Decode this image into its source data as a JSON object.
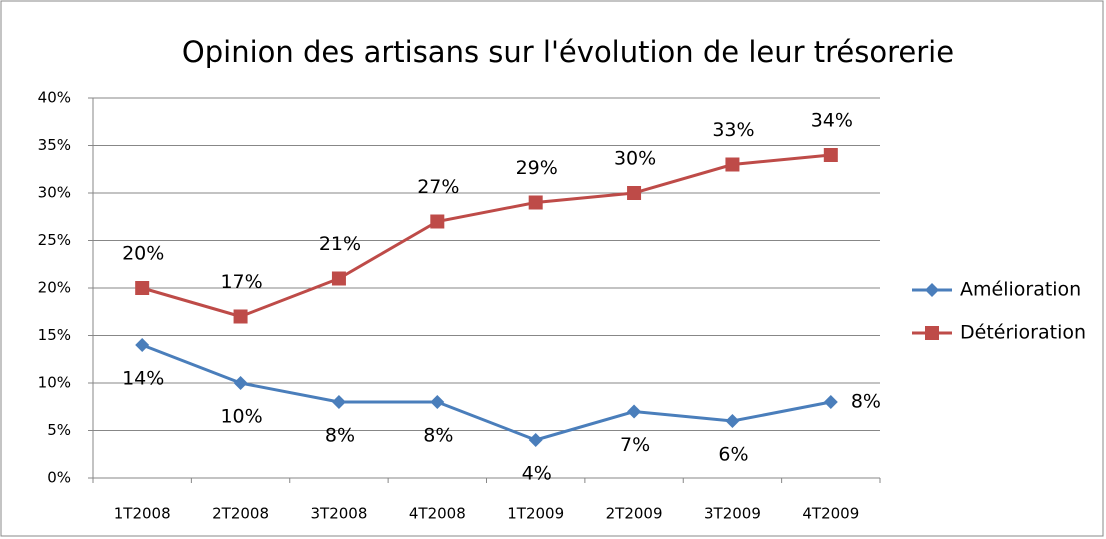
{
  "chart_data": {
    "type": "line",
    "title": "Opinion des artisans sur l'évolution de leur trésorerie",
    "categories": [
      "1T2008",
      "2T2008",
      "3T2008",
      "4T2008",
      "1T2009",
      "2T2009",
      "3T2009",
      "4T2009"
    ],
    "series": [
      {
        "name": "Amélioration",
        "color": "#4a7ebb",
        "marker": "diamond",
        "values": [
          14,
          10,
          8,
          8,
          4,
          7,
          6,
          8
        ],
        "value_labels": [
          "14%",
          "10%",
          "8%",
          "8%",
          "4%",
          "7%",
          "6%",
          "8%"
        ]
      },
      {
        "name": "Détérioration",
        "color": "#be4b48",
        "marker": "square",
        "values": [
          20,
          17,
          21,
          27,
          29,
          30,
          33,
          34
        ],
        "value_labels": [
          "20%",
          "17%",
          "21%",
          "27%",
          "29%",
          "30%",
          "33%",
          "34%"
        ]
      }
    ],
    "ylim": [
      0,
      40
    ],
    "yticks": [
      {
        "value": 0,
        "label": "0%"
      },
      {
        "value": 5,
        "label": "5%"
      },
      {
        "value": 10,
        "label": "10%"
      },
      {
        "value": 15,
        "label": "15%"
      },
      {
        "value": 20,
        "label": "20%"
      },
      {
        "value": 25,
        "label": "25%"
      },
      {
        "value": 30,
        "label": "30%"
      },
      {
        "value": 35,
        "label": "35%"
      },
      {
        "value": 40,
        "label": "40%"
      }
    ],
    "grid": true,
    "legend": "right"
  }
}
